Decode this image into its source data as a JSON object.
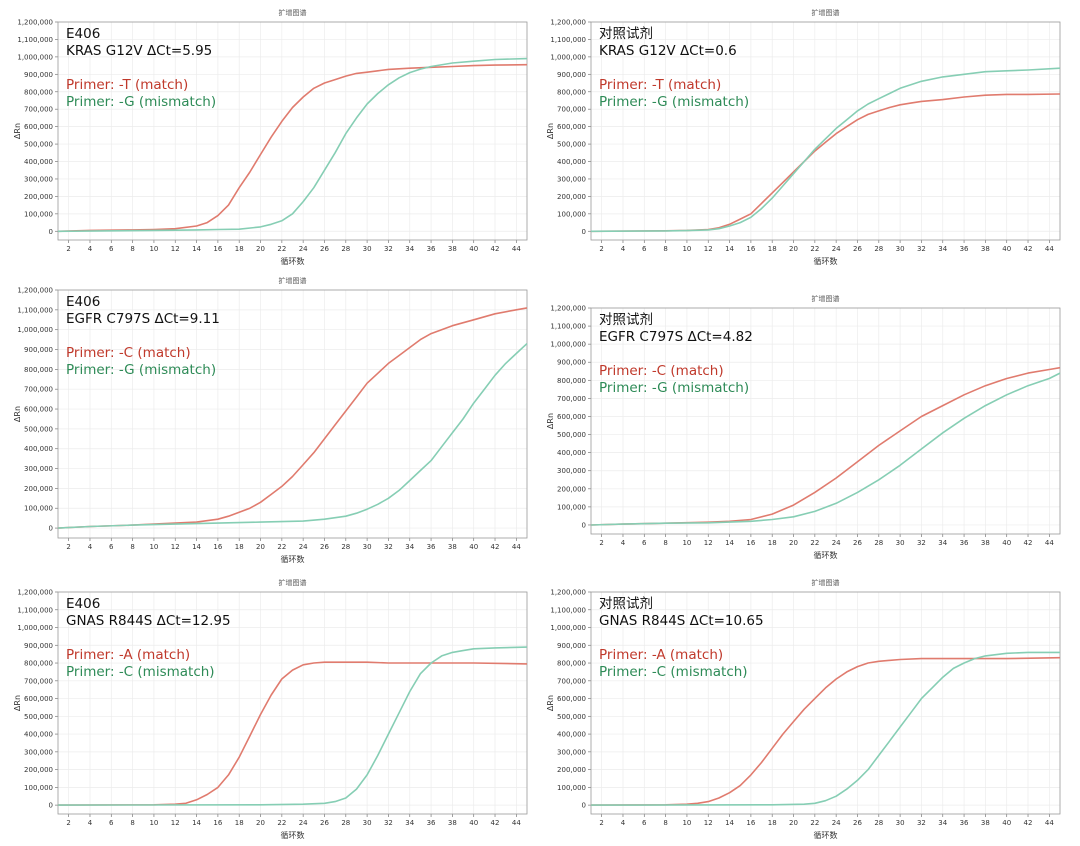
{
  "colors": {
    "match": "#e07b6e",
    "mismatch": "#86ceb4",
    "match_text": "#c0392b",
    "mismatch_text": "#2e8b57"
  },
  "chart_data": [
    {
      "type": "line",
      "title": "扩增图谱",
      "xlabel": "循环数",
      "ylabel": "ΔRn",
      "xlim": [
        1,
        45
      ],
      "ylim": [
        -50000,
        1200000
      ],
      "xticks": [
        "2",
        "4",
        "6",
        "8",
        "10",
        "12",
        "14",
        "16",
        "18",
        "20",
        "22",
        "24",
        "26",
        "28",
        "30",
        "32",
        "34",
        "36",
        "38",
        "40",
        "42",
        "44"
      ],
      "yticks": [
        "0",
        "100,000",
        "200,000",
        "300,000",
        "400,000",
        "500,000",
        "600,000",
        "700,000",
        "800,000",
        "900,000",
        "1,000,000",
        "1,100,000",
        "1,200,000"
      ],
      "annotation": {
        "sample": "E406",
        "target": "KRAS G12V  ΔCt=5.95",
        "primer_match": "Primer: -T (match)",
        "primer_mismatch": "Primer: -G (mismatch)"
      },
      "series": [
        {
          "role": "match",
          "x": [
            1,
            4,
            8,
            10,
            12,
            14,
            15,
            16,
            17,
            18,
            19,
            20,
            21,
            22,
            23,
            24,
            25,
            26,
            27,
            28,
            29,
            30,
            31,
            32,
            34,
            36,
            38,
            40,
            42,
            45
          ],
          "values": [
            0,
            5000,
            8000,
            10000,
            15000,
            30000,
            50000,
            90000,
            150000,
            250000,
            340000,
            440000,
            540000,
            630000,
            710000,
            770000,
            820000,
            850000,
            870000,
            890000,
            905000,
            912000,
            920000,
            928000,
            935000,
            940000,
            945000,
            950000,
            953000,
            955000
          ]
        },
        {
          "role": "mismatch",
          "x": [
            1,
            10,
            14,
            16,
            18,
            20,
            21,
            22,
            23,
            24,
            25,
            26,
            27,
            28,
            29,
            30,
            31,
            32,
            33,
            34,
            35,
            36,
            38,
            40,
            42,
            45
          ],
          "values": [
            0,
            5000,
            8000,
            10000,
            12000,
            25000,
            40000,
            60000,
            100000,
            170000,
            250000,
            350000,
            450000,
            560000,
            650000,
            730000,
            790000,
            840000,
            880000,
            910000,
            930000,
            945000,
            965000,
            975000,
            985000,
            990000
          ]
        }
      ]
    },
    {
      "type": "line",
      "title": "扩增图谱",
      "xlabel": "循环数",
      "ylabel": "ΔRn",
      "xlim": [
        1,
        45
      ],
      "ylim": [
        -50000,
        1200000
      ],
      "xticks": [
        "2",
        "4",
        "6",
        "8",
        "10",
        "12",
        "14",
        "16",
        "18",
        "20",
        "22",
        "24",
        "26",
        "28",
        "30",
        "32",
        "34",
        "36",
        "38",
        "40",
        "42",
        "44"
      ],
      "yticks": [
        "0",
        "100,000",
        "200,000",
        "300,000",
        "400,000",
        "500,000",
        "600,000",
        "700,000",
        "800,000",
        "900,000",
        "1,000,000",
        "1,100,000",
        "1,200,000"
      ],
      "annotation": {
        "sample": "对照试剂",
        "target": "KRAS G12V  ΔCt=0.6",
        "primer_match": "Primer: -T (match)",
        "primer_mismatch": "Primer: -G (mismatch)"
      },
      "series": [
        {
          "role": "match",
          "x": [
            1,
            8,
            10,
            12,
            13,
            14,
            15,
            16,
            17,
            18,
            19,
            20,
            21,
            22,
            23,
            24,
            25,
            26,
            27,
            28,
            29,
            30,
            31,
            32,
            34,
            36,
            38,
            40,
            42,
            45
          ],
          "values": [
            0,
            3000,
            5000,
            10000,
            20000,
            40000,
            70000,
            100000,
            160000,
            220000,
            280000,
            340000,
            400000,
            460000,
            510000,
            560000,
            600000,
            640000,
            670000,
            690000,
            710000,
            725000,
            735000,
            745000,
            755000,
            770000,
            780000,
            785000,
            785000,
            787000
          ]
        },
        {
          "role": "mismatch",
          "x": [
            1,
            8,
            10,
            12,
            13,
            14,
            15,
            16,
            17,
            18,
            19,
            20,
            21,
            22,
            23,
            24,
            25,
            26,
            27,
            28,
            29,
            30,
            31,
            32,
            34,
            36,
            38,
            40,
            42,
            45
          ],
          "values": [
            0,
            2000,
            4000,
            8000,
            15000,
            30000,
            50000,
            80000,
            130000,
            190000,
            260000,
            330000,
            400000,
            470000,
            530000,
            590000,
            640000,
            690000,
            730000,
            760000,
            790000,
            820000,
            840000,
            860000,
            885000,
            900000,
            915000,
            920000,
            925000,
            935000
          ]
        }
      ]
    },
    {
      "type": "line",
      "title": "扩增图谱",
      "xlabel": "循环数",
      "ylabel": "ΔRn",
      "xlim": [
        1,
        45
      ],
      "ylim": [
        -50000,
        1200000
      ],
      "xticks": [
        "2",
        "4",
        "6",
        "8",
        "10",
        "12",
        "14",
        "16",
        "18",
        "20",
        "22",
        "24",
        "26",
        "28",
        "30",
        "32",
        "34",
        "36",
        "38",
        "40",
        "42",
        "44"
      ],
      "yticks": [
        "0",
        "100,000",
        "200,000",
        "300,000",
        "400,000",
        "500,000",
        "600,000",
        "700,000",
        "800,000",
        "900,000",
        "1,000,000",
        "1,100,000",
        "1,200,000"
      ],
      "annotation": {
        "sample": "E406",
        "target": "EGFR C797S  ΔCt=9.11",
        "primer_match": "Primer: -C (match)",
        "primer_mismatch": "Primer: -G (mismatch)"
      },
      "series": [
        {
          "role": "match",
          "x": [
            1,
            4,
            8,
            12,
            14,
            16,
            17,
            18,
            19,
            20,
            21,
            22,
            23,
            24,
            25,
            26,
            27,
            28,
            29,
            30,
            31,
            32,
            33,
            34,
            35,
            36,
            38,
            40,
            42,
            44,
            45
          ],
          "values": [
            0,
            8000,
            15000,
            25000,
            30000,
            45000,
            60000,
            80000,
            100000,
            130000,
            170000,
            210000,
            260000,
            320000,
            380000,
            450000,
            520000,
            590000,
            660000,
            730000,
            780000,
            830000,
            870000,
            910000,
            950000,
            980000,
            1020000,
            1050000,
            1080000,
            1100000,
            1110000
          ]
        },
        {
          "role": "mismatch",
          "x": [
            1,
            4,
            8,
            12,
            16,
            20,
            24,
            26,
            28,
            29,
            30,
            31,
            32,
            33,
            34,
            35,
            36,
            37,
            38,
            39,
            40,
            41,
            42,
            43,
            44,
            45
          ],
          "values": [
            0,
            8000,
            15000,
            20000,
            25000,
            30000,
            35000,
            45000,
            60000,
            75000,
            95000,
            120000,
            150000,
            190000,
            240000,
            290000,
            340000,
            410000,
            480000,
            550000,
            630000,
            700000,
            770000,
            830000,
            880000,
            930000
          ]
        }
      ]
    },
    {
      "type": "line",
      "title": "扩增图谱",
      "xlabel": "循环数",
      "ylabel": "ΔRn",
      "xlim": [
        1,
        45
      ],
      "ylim": [
        -50000,
        1200000
      ],
      "xticks": [
        "2",
        "4",
        "6",
        "8",
        "10",
        "12",
        "14",
        "16",
        "18",
        "20",
        "22",
        "24",
        "26",
        "28",
        "30",
        "32",
        "34",
        "36",
        "38",
        "40",
        "42",
        "44"
      ],
      "yticks": [
        "0",
        "100,000",
        "200,000",
        "300,000",
        "400,000",
        "500,000",
        "600,000",
        "700,000",
        "800,000",
        "900,000",
        "1,000,000",
        "1,100,000",
        "1,200,000"
      ],
      "annotation": {
        "sample": "对照试剂",
        "target": "EGFR C797S  ΔCt=4.82",
        "primer_match": "Primer: -C (match)",
        "primer_mismatch": "Primer: -G (mismatch)"
      },
      "series": [
        {
          "role": "match",
          "x": [
            1,
            4,
            8,
            12,
            14,
            16,
            18,
            20,
            22,
            24,
            26,
            28,
            30,
            32,
            34,
            36,
            38,
            40,
            42,
            44,
            45
          ],
          "values": [
            0,
            5000,
            10000,
            15000,
            20000,
            30000,
            60000,
            110000,
            180000,
            260000,
            350000,
            440000,
            520000,
            600000,
            660000,
            720000,
            770000,
            810000,
            840000,
            860000,
            870000
          ]
        },
        {
          "role": "mismatch",
          "x": [
            1,
            4,
            8,
            12,
            16,
            18,
            20,
            22,
            24,
            26,
            28,
            30,
            32,
            34,
            36,
            38,
            40,
            42,
            44,
            45
          ],
          "values": [
            0,
            5000,
            10000,
            12000,
            20000,
            30000,
            45000,
            75000,
            120000,
            180000,
            250000,
            330000,
            420000,
            510000,
            590000,
            660000,
            720000,
            770000,
            810000,
            840000
          ]
        }
      ]
    },
    {
      "type": "line",
      "title": "扩增图谱",
      "xlabel": "循环数",
      "ylabel": "ΔRn",
      "xlim": [
        1,
        45
      ],
      "ylim": [
        -50000,
        1200000
      ],
      "xticks": [
        "2",
        "4",
        "6",
        "8",
        "10",
        "12",
        "14",
        "16",
        "18",
        "20",
        "22",
        "24",
        "26",
        "28",
        "30",
        "32",
        "34",
        "36",
        "38",
        "40",
        "42",
        "44"
      ],
      "yticks": [
        "0",
        "100,000",
        "200,000",
        "300,000",
        "400,000",
        "500,000",
        "600,000",
        "700,000",
        "800,000",
        "900,000",
        "1,000,000",
        "1,100,000",
        "1,200,000"
      ],
      "annotation": {
        "sample": "E406",
        "target": "GNAS R844S  ΔCt=12.95",
        "primer_match": "Primer: -A (match)",
        "primer_mismatch": "Primer: -C (mismatch)"
      },
      "series": [
        {
          "role": "match",
          "x": [
            1,
            10,
            12,
            13,
            14,
            15,
            16,
            17,
            18,
            19,
            20,
            21,
            22,
            23,
            24,
            25,
            26,
            28,
            30,
            32,
            36,
            40,
            45
          ],
          "values": [
            0,
            2000,
            5000,
            10000,
            30000,
            60000,
            100000,
            170000,
            270000,
            390000,
            510000,
            620000,
            710000,
            760000,
            790000,
            800000,
            805000,
            805000,
            805000,
            800000,
            800000,
            800000,
            795000
          ]
        },
        {
          "role": "mismatch",
          "x": [
            1,
            20,
            24,
            26,
            27,
            28,
            29,
            30,
            31,
            32,
            33,
            34,
            35,
            36,
            37,
            38,
            39,
            40,
            42,
            45
          ],
          "values": [
            0,
            2000,
            5000,
            10000,
            20000,
            40000,
            90000,
            170000,
            280000,
            400000,
            520000,
            640000,
            740000,
            800000,
            840000,
            860000,
            870000,
            880000,
            885000,
            890000
          ]
        }
      ]
    },
    {
      "type": "line",
      "title": "扩增图谱",
      "xlabel": "循环数",
      "ylabel": "ΔRn",
      "xlim": [
        1,
        45
      ],
      "ylim": [
        -50000,
        1200000
      ],
      "xticks": [
        "2",
        "4",
        "6",
        "8",
        "10",
        "12",
        "14",
        "16",
        "18",
        "20",
        "22",
        "24",
        "26",
        "28",
        "30",
        "32",
        "34",
        "36",
        "38",
        "40",
        "42",
        "44"
      ],
      "yticks": [
        "0",
        "100,000",
        "200,000",
        "300,000",
        "400,000",
        "500,000",
        "600,000",
        "700,000",
        "800,000",
        "900,000",
        "1,000,000",
        "1,100,000",
        "1,200,000"
      ],
      "annotation": {
        "sample": "对照试剂",
        "target": "GNAS R844S  ΔCt=10.65",
        "primer_match": "Primer: -A (match)",
        "primer_mismatch": "Primer: -C (mismatch)"
      },
      "series": [
        {
          "role": "match",
          "x": [
            1,
            8,
            10,
            11,
            12,
            13,
            14,
            15,
            16,
            17,
            18,
            19,
            20,
            21,
            22,
            23,
            24,
            25,
            26,
            27,
            28,
            30,
            32,
            34,
            36,
            40,
            45
          ],
          "values": [
            0,
            2000,
            5000,
            10000,
            20000,
            40000,
            70000,
            110000,
            170000,
            240000,
            320000,
            400000,
            470000,
            540000,
            600000,
            660000,
            710000,
            750000,
            780000,
            800000,
            810000,
            820000,
            825000,
            825000,
            825000,
            825000,
            830000
          ]
        },
        {
          "role": "mismatch",
          "x": [
            1,
            18,
            21,
            22,
            23,
            24,
            25,
            26,
            27,
            28,
            29,
            30,
            31,
            32,
            33,
            34,
            35,
            36,
            37,
            38,
            40,
            42,
            45
          ],
          "values": [
            0,
            2000,
            5000,
            10000,
            25000,
            50000,
            90000,
            140000,
            200000,
            280000,
            360000,
            440000,
            520000,
            600000,
            660000,
            720000,
            770000,
            800000,
            825000,
            840000,
            855000,
            860000,
            860000
          ]
        }
      ]
    }
  ]
}
